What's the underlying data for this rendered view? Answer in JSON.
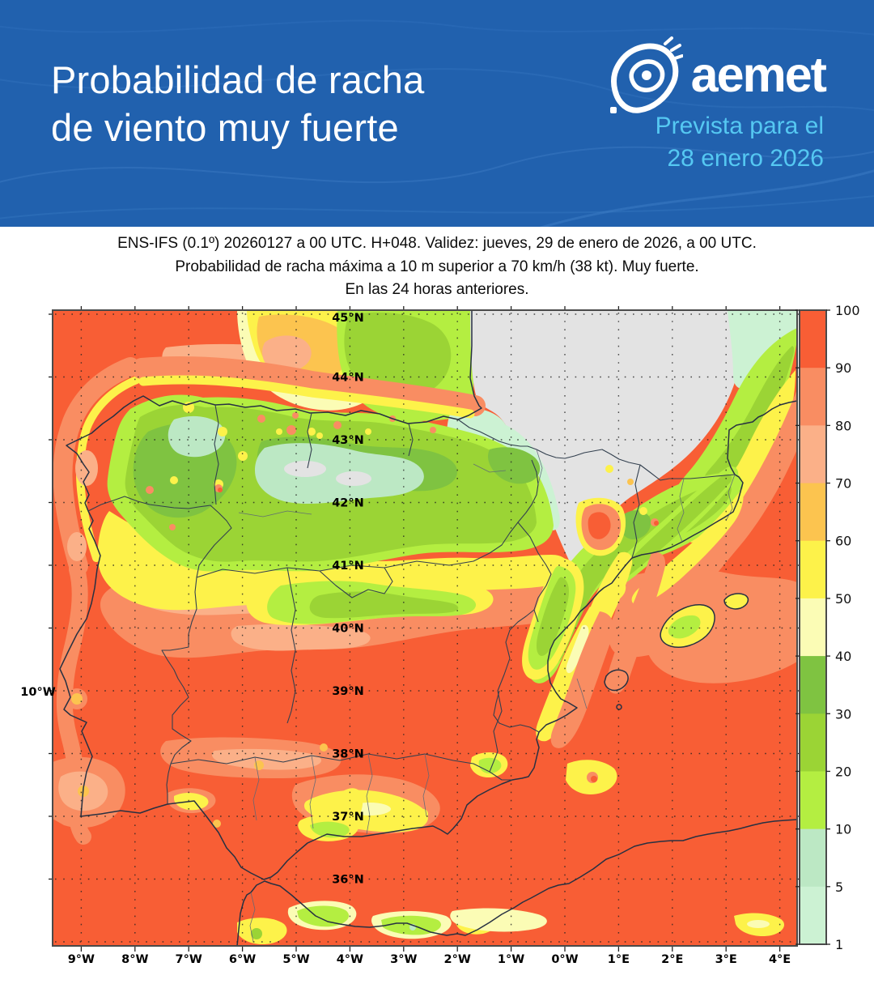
{
  "header": {
    "title_line1": "Probabilidad de racha",
    "title_line2": "de viento muy fuerte",
    "brand": "aemet",
    "forecast_line1": "Prevista para el",
    "forecast_line2": "28 enero 2026"
  },
  "subtitle": {
    "line1": "ENS-IFS (0.1º) 20260127 a 00 UTC. H+048. Validez: jueves, 29 de enero de 2026, a 00 UTC.",
    "line2": "Probabilidad de racha máxima a 10 m superior a 70 km/h (38 kt). Muy fuerte.",
    "line3": "En las 24 horas anteriores."
  },
  "map": {
    "lat_labels": [
      "45°N",
      "44°N",
      "43°N",
      "42°N",
      "41°N",
      "40°N",
      "39°N",
      "38°N",
      "37°N",
      "36°N"
    ],
    "lon_labels": [
      "9°W",
      "8°W",
      "7°W",
      "6°W",
      "5°W",
      "4°W",
      "3°W",
      "2°W",
      "1°W",
      "0°W",
      "1°E",
      "2°E",
      "3°E",
      "4°E"
    ],
    "left_axis_label": "10°W"
  },
  "colorbar": {
    "tick_labels": [
      "100",
      "90",
      "80",
      "70",
      "60",
      "50",
      "40",
      "30",
      "20",
      "10",
      "5",
      "1"
    ],
    "colors_top_to_bottom": [
      "#f85e35",
      "#f98d62",
      "#fbb088",
      "#fcc44f",
      "#fdf24a",
      "#fbfcb5",
      "#7fc341",
      "#9bd435",
      "#b4ee41",
      "#bce8c4",
      "#ccf2d3"
    ]
  },
  "palette": {
    "p100": "#f85e35",
    "p90": "#f98d62",
    "p80": "#fbb088",
    "p70": "#fcc44f",
    "p60": "#fdf24a",
    "p50": "#fbfcb5",
    "p40": "#7fc341",
    "p30": "#9bd435",
    "p20": "#b4ee41",
    "p10": "#bce8c4",
    "p5": "#ccf2d3",
    "p0": "#e3e3e3",
    "header_bg": "#2161ae",
    "accent_light_blue": "#55c8f2"
  }
}
